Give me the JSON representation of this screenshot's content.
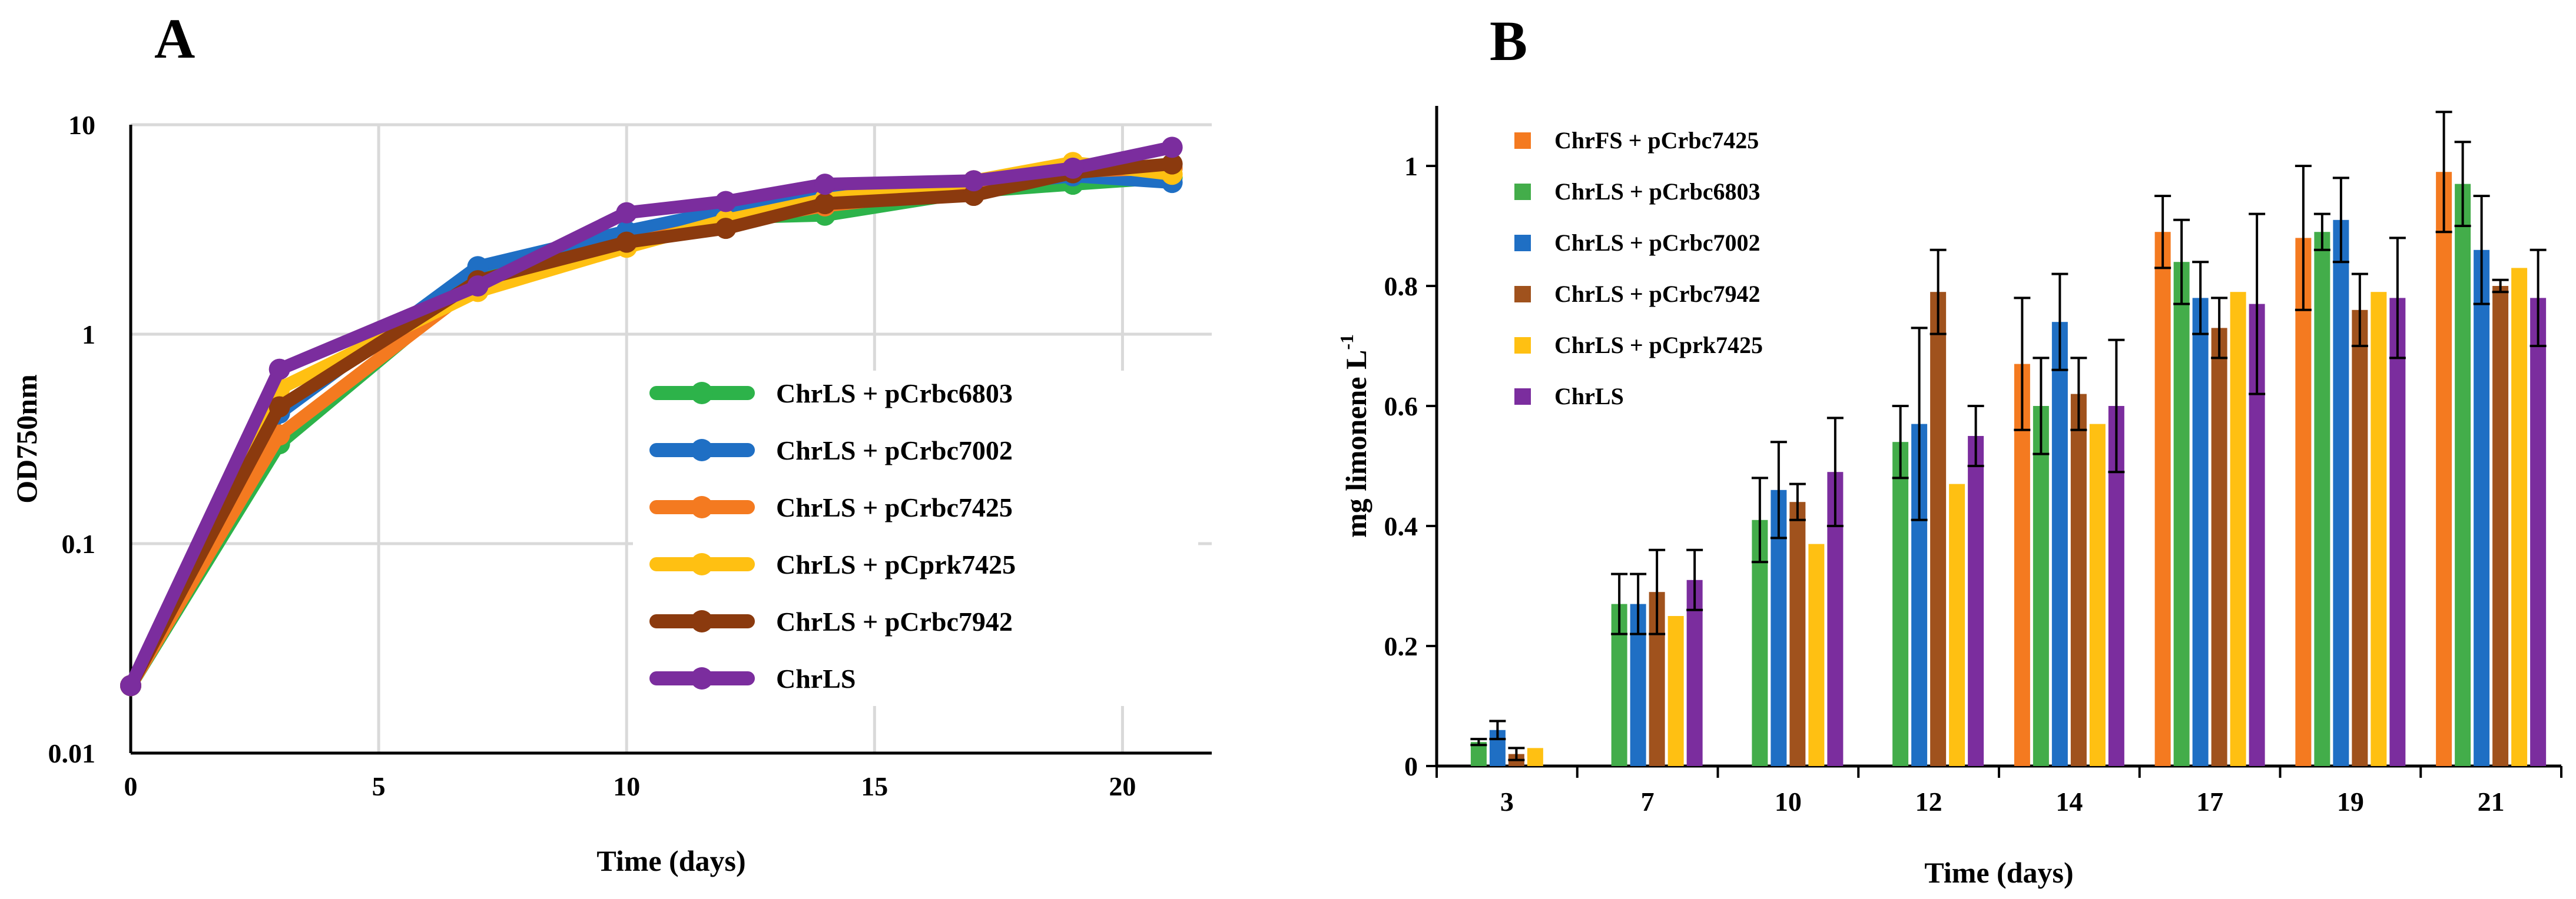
{
  "panels": {
    "a_letter": "A",
    "b_letter": "B"
  },
  "chart_data": [
    {
      "type": "line",
      "title": "",
      "xlabel": "Time (days)",
      "ylabel": "OD750nm",
      "yscale": "log",
      "xlim": [
        0,
        21
      ],
      "ylim": [
        0.01,
        10
      ],
      "x_ticks": [
        "0",
        "5",
        "10",
        "15",
        "20"
      ],
      "y_ticks": [
        "0.01",
        "0.1",
        "1",
        "10"
      ],
      "grid": true,
      "legend_position": "center-right",
      "series": [
        {
          "name": "ChrLS + pCrbc6803",
          "color": "#2db34a",
          "x": [
            0,
            3,
            7,
            10,
            12,
            14,
            17,
            19,
            21
          ],
          "y": [
            0.021,
            0.3,
            1.85,
            2.8,
            3.6,
            3.7,
            4.8,
            5.2,
            5.6
          ]
        },
        {
          "name": "ChrLS + pCrbc7002",
          "color": "#1f6fc4",
          "x": [
            0,
            3,
            7,
            10,
            12,
            14,
            17,
            19,
            21
          ],
          "y": [
            0.021,
            0.42,
            2.1,
            3.1,
            3.9,
            4.6,
            5.1,
            5.7,
            5.3
          ]
        },
        {
          "name": "ChrLS + pCrbc7425",
          "color": "#f47a20",
          "x": [
            0,
            3,
            7,
            10,
            12,
            14,
            17,
            19,
            21
          ],
          "y": [
            0.021,
            0.33,
            1.75,
            2.7,
            3.4,
            4.1,
            4.9,
            6.0,
            6.2
          ]
        },
        {
          "name": "ChrLS + pCprk7425",
          "color": "#ffc012",
          "x": [
            0,
            3,
            7,
            10,
            12,
            14,
            17,
            19,
            21
          ],
          "y": [
            0.021,
            0.55,
            1.6,
            2.6,
            3.5,
            4.4,
            5.4,
            6.6,
            5.8
          ]
        },
        {
          "name": "ChrLS + pCrbc7942",
          "color": "#8b3a0e",
          "x": [
            0,
            3,
            7,
            10,
            12,
            14,
            17,
            19,
            21
          ],
          "y": [
            0.021,
            0.45,
            1.8,
            2.75,
            3.2,
            4.2,
            4.6,
            5.9,
            6.5
          ]
        },
        {
          "name": "ChrLS",
          "color": "#7b2d9e",
          "x": [
            0,
            3,
            7,
            10,
            12,
            14,
            17,
            19,
            21
          ],
          "y": [
            0.021,
            0.68,
            1.7,
            3.8,
            4.3,
            5.2,
            5.4,
            6.2,
            7.8
          ]
        }
      ]
    },
    {
      "type": "bar",
      "title": "",
      "xlabel": "Time (days)",
      "ylabel_main": "mg limonene L",
      "ylabel_sup": "-1",
      "ylim": [
        0,
        1.1
      ],
      "y_ticks": [
        "0",
        "0.2",
        "0.4",
        "0.6",
        "0.8",
        "1"
      ],
      "categories": [
        "3",
        "7",
        "10",
        "12",
        "14",
        "17",
        "19",
        "21"
      ],
      "legend_position": "top-left",
      "series": [
        {
          "name": "ChrFS + pCrbc7425",
          "color": "#f47a20",
          "values": [
            null,
            null,
            null,
            null,
            0.67,
            0.89,
            0.88,
            0.99
          ],
          "err": [
            0,
            0,
            0,
            0,
            0.11,
            0.06,
            0.12,
            0.1
          ]
        },
        {
          "name": "ChrLS + pCrbc6803",
          "color": "#43ad4a",
          "values": [
            0.04,
            0.27,
            0.41,
            0.54,
            0.6,
            0.84,
            0.89,
            0.97
          ],
          "err": [
            0.005,
            0.05,
            0.07,
            0.06,
            0.08,
            0.07,
            0.03,
            0.07
          ]
        },
        {
          "name": "ChrLS + pCrbc7002",
          "color": "#1f6fc4",
          "values": [
            0.06,
            0.27,
            0.46,
            0.57,
            0.74,
            0.78,
            0.91,
            0.86
          ],
          "err": [
            0.015,
            0.05,
            0.08,
            0.16,
            0.08,
            0.06,
            0.07,
            0.09
          ]
        },
        {
          "name": "ChrLS + pCrbc7942",
          "color": "#a0521d",
          "values": [
            0.02,
            0.29,
            0.44,
            0.79,
            0.62,
            0.73,
            0.76,
            0.8
          ],
          "err": [
            0.01,
            0.07,
            0.03,
            0.07,
            0.06,
            0.05,
            0.06,
            0.01
          ]
        },
        {
          "name": "ChrLS + pCprk7425",
          "color": "#ffc012",
          "values": [
            0.03,
            0.25,
            0.37,
            0.47,
            0.57,
            0.79,
            0.79,
            0.83
          ],
          "err": [
            0,
            0,
            0,
            0,
            0,
            0,
            0,
            0
          ]
        },
        {
          "name": "ChrLS",
          "color": "#7b2d9e",
          "values": [
            null,
            0.31,
            0.49,
            0.55,
            0.6,
            0.77,
            0.78,
            0.78
          ],
          "err": [
            0,
            0.05,
            0.09,
            0.05,
            0.11,
            0.15,
            0.1,
            0.08
          ]
        }
      ]
    }
  ]
}
